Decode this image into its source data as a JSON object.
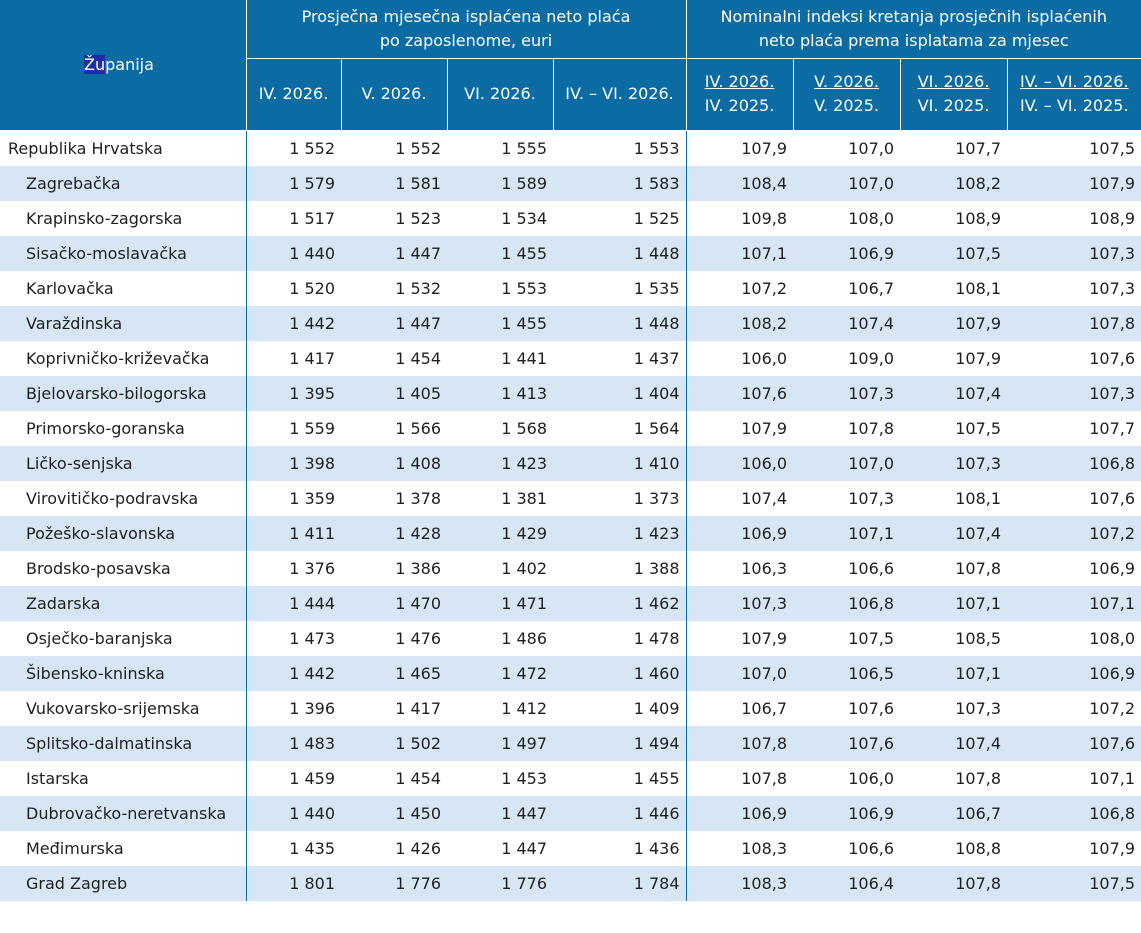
{
  "table": {
    "county_header_hl": "Žu",
    "county_header_rest": "panija",
    "group1_header": "Prosječna mjesečna isplaćena neto plaća po zaposlenome, euri",
    "group2_header": "Nominalni indeksi kretanja prosječnih isplaćenih neto plaća prema isplatama za mjesec",
    "period_headers": [
      "IV. 2026.",
      "V. 2026.",
      "VI. 2026.",
      "IV. – VI. 2026."
    ],
    "index_headers": [
      {
        "top": "IV. 2026.",
        "bottom": "IV. 2025."
      },
      {
        "top": "V. 2026.",
        "bottom": "V. 2025."
      },
      {
        "top": "VI. 2026.",
        "bottom": "VI. 2025."
      },
      {
        "top": "IV. – VI. 2026.",
        "bottom": "IV. – VI. 2025."
      }
    ],
    "rows": [
      {
        "name": "Republika Hrvatska",
        "values": [
          "1 552",
          "1 552",
          "1 555",
          "1 553",
          "107,9",
          "107,0",
          "107,7",
          "107,5"
        ]
      },
      {
        "name": "Zagrebačka",
        "values": [
          "1 579",
          "1 581",
          "1 589",
          "1 583",
          "108,4",
          "107,0",
          "108,2",
          "107,9"
        ]
      },
      {
        "name": "Krapinsko-zagorska",
        "values": [
          "1 517",
          "1 523",
          "1 534",
          "1 525",
          "109,8",
          "108,0",
          "108,9",
          "108,9"
        ]
      },
      {
        "name": "Sisačko-moslavačka",
        "values": [
          "1 440",
          "1 447",
          "1 455",
          "1 448",
          "107,1",
          "106,9",
          "107,5",
          "107,3"
        ]
      },
      {
        "name": "Karlovačka",
        "values": [
          "1 520",
          "1 532",
          "1 553",
          "1 535",
          "107,2",
          "106,7",
          "108,1",
          "107,3"
        ]
      },
      {
        "name": "Varaždinska",
        "values": [
          "1 442",
          "1 447",
          "1 455",
          "1 448",
          "108,2",
          "107,4",
          "107,9",
          "107,8"
        ]
      },
      {
        "name": "Koprivničko-križevačka",
        "values": [
          "1 417",
          "1 454",
          "1 441",
          "1 437",
          "106,0",
          "109,0",
          "107,9",
          "107,6"
        ]
      },
      {
        "name": "Bjelovarsko-bilogorska",
        "values": [
          "1 395",
          "1 405",
          "1 413",
          "1 404",
          "107,6",
          "107,3",
          "107,4",
          "107,3"
        ]
      },
      {
        "name": "Primorsko-goranska",
        "values": [
          "1 559",
          "1 566",
          "1 568",
          "1 564",
          "107,9",
          "107,8",
          "107,5",
          "107,7"
        ]
      },
      {
        "name": "Ličko-senjska",
        "values": [
          "1 398",
          "1 408",
          "1 423",
          "1 410",
          "106,0",
          "107,0",
          "107,3",
          "106,8"
        ]
      },
      {
        "name": "Virovitičko-podravska",
        "values": [
          "1 359",
          "1 378",
          "1 381",
          "1 373",
          "107,4",
          "107,3",
          "108,1",
          "107,6"
        ]
      },
      {
        "name": "Požeško-slavonska",
        "values": [
          "1 411",
          "1 428",
          "1 429",
          "1 423",
          "106,9",
          "107,1",
          "107,4",
          "107,2"
        ]
      },
      {
        "name": "Brodsko-posavska",
        "values": [
          "1 376",
          "1 386",
          "1 402",
          "1 388",
          "106,3",
          "106,6",
          "107,8",
          "106,9"
        ]
      },
      {
        "name": "Zadarska",
        "values": [
          "1 444",
          "1 470",
          "1 471",
          "1 462",
          "107,3",
          "106,8",
          "107,1",
          "107,1"
        ]
      },
      {
        "name": "Osječko-baranjska",
        "values": [
          "1 473",
          "1 476",
          "1 486",
          "1 478",
          "107,9",
          "107,5",
          "108,5",
          "108,0"
        ]
      },
      {
        "name": "Šibensko-kninska",
        "values": [
          "1 442",
          "1 465",
          "1 472",
          "1 460",
          "107,0",
          "106,5",
          "107,1",
          "106,9"
        ]
      },
      {
        "name": "Vukovarsko-srijemska",
        "values": [
          "1 396",
          "1 417",
          "1 412",
          "1 409",
          "106,7",
          "107,6",
          "107,3",
          "107,2"
        ]
      },
      {
        "name": "Splitsko-dalmatinska",
        "values": [
          "1 483",
          "1 502",
          "1 497",
          "1 494",
          "107,8",
          "107,6",
          "107,4",
          "107,6"
        ]
      },
      {
        "name": "Istarska",
        "values": [
          "1 459",
          "1 454",
          "1 453",
          "1 455",
          "107,8",
          "106,0",
          "107,8",
          "107,1"
        ]
      },
      {
        "name": "Dubrovačko-neretvanska",
        "values": [
          "1 440",
          "1 450",
          "1 447",
          "1 446",
          "106,9",
          "106,9",
          "106,7",
          "106,8"
        ]
      },
      {
        "name": "Međimurska",
        "values": [
          "1 435",
          "1 426",
          "1 447",
          "1 436",
          "108,3",
          "106,6",
          "108,8",
          "107,9"
        ]
      },
      {
        "name": "Grad Zagreb",
        "values": [
          "1 801",
          "1 776",
          "1 776",
          "1 784",
          "108,3",
          "106,4",
          "107,8",
          "107,5"
        ]
      }
    ]
  }
}
